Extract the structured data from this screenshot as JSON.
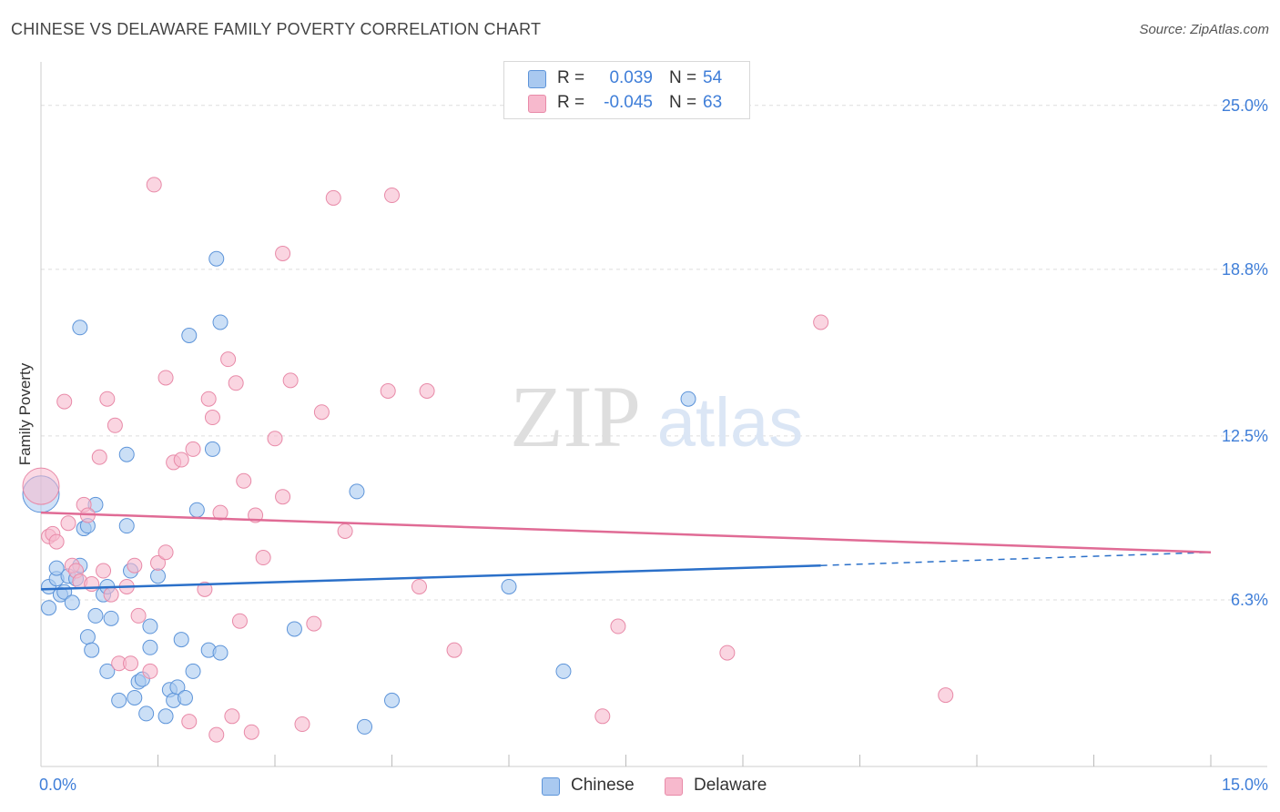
{
  "title": "CHINESE VS DELAWARE FAMILY POVERTY CORRELATION CHART",
  "source": "Source: ZipAtlas.com",
  "watermark": {
    "zip": "ZIP",
    "atlas": "atlas"
  },
  "colors": {
    "chinese_fill": "#a9c9f0",
    "chinese_stroke": "#5d94d9",
    "chinese_line": "#2b70c9",
    "delaware_fill": "#f7b9cd",
    "delaware_stroke": "#e88aa8",
    "delaware_line": "#e06b95",
    "grid": "#dedede",
    "axis_label": "#3f7ed8"
  },
  "legend": {
    "rows": [
      {
        "series": "Chinese",
        "r_label": "R =",
        "r_value": "0.039",
        "n_label": "N =",
        "n_value": "54"
      },
      {
        "series": "Delaware",
        "r_label": "R =",
        "r_value": "-0.045",
        "n_label": "N =",
        "n_value": "63"
      }
    ]
  },
  "bottom_legend": {
    "chinese": "Chinese",
    "delaware": "Delaware"
  },
  "chart_data": {
    "type": "scatter",
    "title": "CHINESE VS DELAWARE FAMILY POVERTY CORRELATION CHART",
    "xlabel": "",
    "ylabel": "Family Poverty",
    "xlim": [
      0,
      15
    ],
    "ylim": [
      0,
      26.3
    ],
    "x_tick_labels": {
      "min": "0.0%",
      "max": "15.0%"
    },
    "y_ticks": [
      {
        "value": 6.3,
        "label": "6.3%"
      },
      {
        "value": 12.5,
        "label": "12.5%"
      },
      {
        "value": 18.8,
        "label": "18.8%"
      },
      {
        "value": 25.0,
        "label": "25.0%"
      }
    ],
    "grid": true,
    "series": [
      {
        "name": "Chinese",
        "R": 0.039,
        "N": 54,
        "trend": {
          "x0": 0.0,
          "y0": 6.7,
          "x1": 10.0,
          "y1": 7.6,
          "dashed_to_x": 15.0,
          "dashed_to_y": 8.1
        },
        "points": [
          [
            0.0,
            10.3
          ],
          [
            0.1,
            6.8
          ],
          [
            0.1,
            6.0
          ],
          [
            0.2,
            7.1
          ],
          [
            0.2,
            7.5
          ],
          [
            0.25,
            6.5
          ],
          [
            0.3,
            6.6
          ],
          [
            0.35,
            7.2
          ],
          [
            0.4,
            6.2
          ],
          [
            0.45,
            7.1
          ],
          [
            0.5,
            7.6
          ],
          [
            0.5,
            16.6
          ],
          [
            0.55,
            9.0
          ],
          [
            0.6,
            9.1
          ],
          [
            0.6,
            4.9
          ],
          [
            0.65,
            4.4
          ],
          [
            0.7,
            9.9
          ],
          [
            0.7,
            5.7
          ],
          [
            0.8,
            6.5
          ],
          [
            0.85,
            6.8
          ],
          [
            0.85,
            3.6
          ],
          [
            0.9,
            5.6
          ],
          [
            1.0,
            2.5
          ],
          [
            1.1,
            9.1
          ],
          [
            1.1,
            11.8
          ],
          [
            1.15,
            7.4
          ],
          [
            1.2,
            2.6
          ],
          [
            1.25,
            3.2
          ],
          [
            1.3,
            3.3
          ],
          [
            1.35,
            2.0
          ],
          [
            1.4,
            4.5
          ],
          [
            1.4,
            5.3
          ],
          [
            1.5,
            7.2
          ],
          [
            1.6,
            1.9
          ],
          [
            1.65,
            2.9
          ],
          [
            1.7,
            2.5
          ],
          [
            1.75,
            3.0
          ],
          [
            1.8,
            4.8
          ],
          [
            1.85,
            2.6
          ],
          [
            1.9,
            16.3
          ],
          [
            1.95,
            3.6
          ],
          [
            2.0,
            9.7
          ],
          [
            2.15,
            4.4
          ],
          [
            2.2,
            12.0
          ],
          [
            2.25,
            19.2
          ],
          [
            2.3,
            16.8
          ],
          [
            2.3,
            4.3
          ],
          [
            3.25,
            5.2
          ],
          [
            4.05,
            10.4
          ],
          [
            4.15,
            1.5
          ],
          [
            4.5,
            2.5
          ],
          [
            6.0,
            6.8
          ],
          [
            6.7,
            3.6
          ],
          [
            8.3,
            13.9
          ]
        ]
      },
      {
        "name": "Delaware",
        "R": -0.045,
        "N": 63,
        "trend": {
          "x0": 0.0,
          "y0": 9.6,
          "x1": 15.0,
          "y1": 8.1
        },
        "points": [
          [
            0.0,
            10.6
          ],
          [
            0.1,
            8.7
          ],
          [
            0.15,
            8.8
          ],
          [
            0.2,
            8.5
          ],
          [
            0.3,
            13.8
          ],
          [
            0.35,
            9.2
          ],
          [
            0.4,
            7.6
          ],
          [
            0.45,
            7.4
          ],
          [
            0.5,
            7.0
          ],
          [
            0.55,
            9.9
          ],
          [
            0.6,
            9.5
          ],
          [
            0.65,
            6.9
          ],
          [
            0.75,
            11.7
          ],
          [
            0.8,
            7.4
          ],
          [
            0.85,
            13.9
          ],
          [
            0.9,
            6.5
          ],
          [
            0.95,
            12.9
          ],
          [
            1.0,
            3.9
          ],
          [
            1.1,
            6.8
          ],
          [
            1.15,
            3.9
          ],
          [
            1.2,
            7.6
          ],
          [
            1.25,
            5.7
          ],
          [
            1.4,
            3.6
          ],
          [
            1.45,
            22.0
          ],
          [
            1.5,
            7.7
          ],
          [
            1.6,
            8.1
          ],
          [
            1.6,
            14.7
          ],
          [
            1.7,
            11.5
          ],
          [
            1.8,
            11.6
          ],
          [
            1.9,
            1.7
          ],
          [
            1.95,
            12.0
          ],
          [
            2.1,
            6.7
          ],
          [
            2.15,
            13.9
          ],
          [
            2.2,
            13.2
          ],
          [
            2.25,
            1.2
          ],
          [
            2.3,
            9.6
          ],
          [
            2.4,
            15.4
          ],
          [
            2.45,
            1.9
          ],
          [
            2.5,
            14.5
          ],
          [
            2.55,
            5.5
          ],
          [
            2.6,
            10.8
          ],
          [
            2.7,
            1.3
          ],
          [
            2.75,
            9.5
          ],
          [
            2.85,
            7.9
          ],
          [
            3.0,
            12.4
          ],
          [
            3.1,
            10.2
          ],
          [
            3.1,
            19.4
          ],
          [
            3.2,
            14.6
          ],
          [
            3.35,
            1.6
          ],
          [
            3.5,
            5.4
          ],
          [
            3.6,
            13.4
          ],
          [
            3.75,
            21.5
          ],
          [
            3.9,
            8.9
          ],
          [
            4.45,
            14.2
          ],
          [
            4.5,
            21.6
          ],
          [
            4.85,
            6.8
          ],
          [
            4.95,
            14.2
          ],
          [
            5.3,
            4.4
          ],
          [
            7.2,
            1.9
          ],
          [
            7.4,
            5.3
          ],
          [
            8.8,
            4.3
          ],
          [
            10.0,
            16.8
          ],
          [
            11.6,
            2.7
          ]
        ]
      }
    ]
  }
}
